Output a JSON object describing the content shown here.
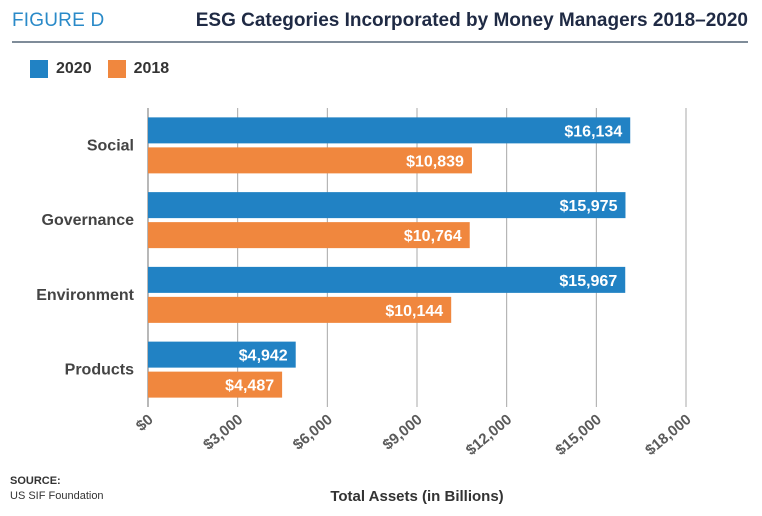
{
  "header": {
    "figure_label": "FIGURE D",
    "title": "ESG Categories Incorporated by Money Managers 2018–2020"
  },
  "source": {
    "label": "SOURCE:",
    "text": "US SIF Foundation"
  },
  "colors": {
    "series_2020": "#2182c4",
    "series_2018": "#f0873e",
    "figure_label": "#2a8ac8",
    "title": "#1f2a44"
  },
  "chart_data": {
    "type": "bar",
    "orientation": "horizontal",
    "categories": [
      "Social",
      "Governance",
      "Environment",
      "Products"
    ],
    "series": [
      {
        "name": "2020",
        "values": [
          16134,
          15975,
          15967,
          4942
        ],
        "labels": [
          "$16,134",
          "$15,975",
          "$15,967",
          "$4,942"
        ],
        "color": "#2182c4"
      },
      {
        "name": "2018",
        "values": [
          10839,
          10764,
          10144,
          4487
        ],
        "labels": [
          "$10,839",
          "$10,764",
          "$10,144",
          "$4,487"
        ],
        "color": "#f0873e"
      }
    ],
    "xlabel": "Total Assets (in Billions)",
    "xlim": [
      0,
      18000
    ],
    "xticks": [
      0,
      3000,
      6000,
      9000,
      12000,
      15000,
      18000
    ],
    "xtick_labels": [
      "$0",
      "$3,000",
      "$6,000",
      "$9,000",
      "$12,000",
      "$15,000",
      "$18,000"
    ],
    "grid": true,
    "legend_position": "top-left"
  }
}
